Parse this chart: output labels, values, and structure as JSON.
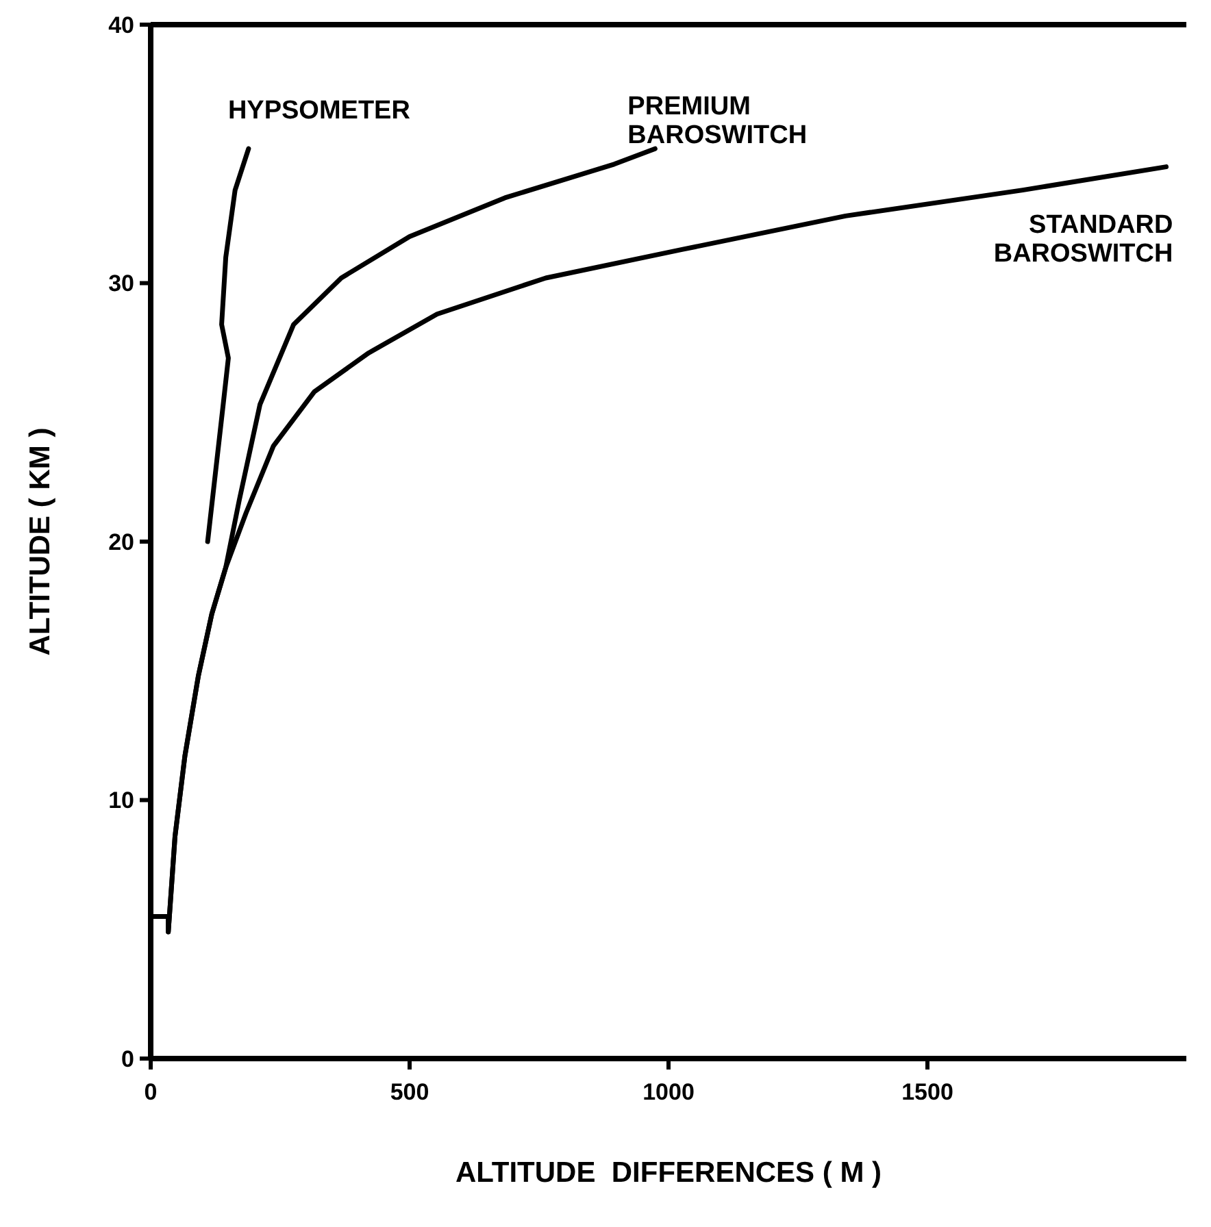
{
  "chart_data": {
    "type": "line",
    "xlabel": "ALTITUDE  DIFFERENCES ( M )",
    "ylabel": "ALTITUDE ( KM )",
    "xlim": [
      0,
      2000
    ],
    "ylim": [
      0,
      40
    ],
    "xticks": [
      0,
      500,
      1000,
      1500
    ],
    "yticks": [
      0,
      10,
      20,
      30,
      40
    ],
    "grid": false,
    "marker": "none",
    "line_style": "solid",
    "series": [
      {
        "name": "HYPSOMETER",
        "color": "#000000",
        "x": [
          110,
          140,
          150,
          137,
          145,
          163,
          189
        ],
        "values": [
          20,
          25.3,
          27.1,
          28.4,
          31,
          33.6,
          35.2
        ]
      },
      {
        "name": "PREMIUM BAROSWITCH",
        "color": "#000000",
        "x": [
          0,
          34,
          34,
          47,
          66,
          92,
          118,
          145,
          171,
          211,
          276,
          368,
          500,
          684,
          895,
          974
        ],
        "values": [
          5.5,
          5.5,
          4.9,
          8.6,
          11.7,
          14.8,
          17.2,
          19,
          21.6,
          25.3,
          28.4,
          30.2,
          31.8,
          33.3,
          34.6,
          35.2
        ]
      },
      {
        "name": "STANDARD BAROSWITCH",
        "color": "#000000",
        "x": [
          0,
          34,
          34,
          47,
          66,
          92,
          118,
          145,
          184,
          237,
          316,
          421,
          553,
          763,
          1026,
          1342,
          1684,
          1961
        ],
        "values": [
          5.5,
          5.5,
          4.9,
          8.6,
          11.7,
          14.8,
          17.2,
          19,
          21.1,
          23.7,
          25.8,
          27.3,
          28.8,
          30.2,
          31.3,
          32.6,
          33.6,
          34.5
        ]
      }
    ]
  }
}
